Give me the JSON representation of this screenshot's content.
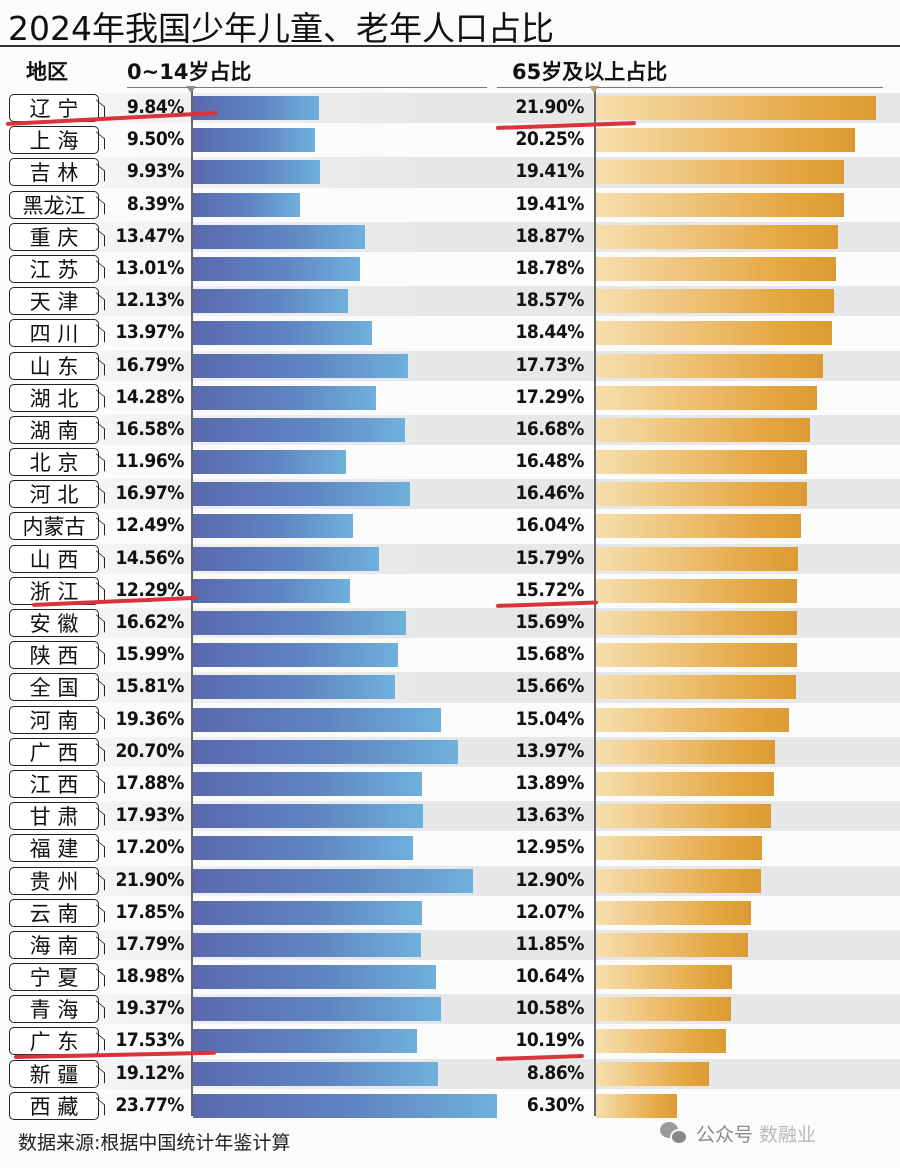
{
  "title": "2024年我国少年儿童、老年人口占比",
  "headers": {
    "region": "地区",
    "young": "0~14岁占比",
    "old": "65岁及以上占比"
  },
  "footer": {
    "source": "数据来源:根据中国统计年鉴计算",
    "watermark_prefix": "公众号",
    "watermark_name": "数融业"
  },
  "colors": {
    "young_bar_start": "#5a69ae",
    "young_bar_end": "#6fb0dc",
    "old_bar_start": "#f5dfae",
    "old_bar_end": "#dc9a34",
    "annotation_red": "#d9343c"
  },
  "chart_data": {
    "type": "bar",
    "orientation": "horizontal",
    "title": "2024年我国少年儿童、老年人口占比",
    "xlabel": "",
    "ylabel": "地区",
    "categories": [
      "辽宁",
      "上海",
      "吉林",
      "黑龙江",
      "重庆",
      "江苏",
      "天津",
      "四川",
      "山东",
      "湖北",
      "湖南",
      "北京",
      "河北",
      "内蒙古",
      "山西",
      "浙江",
      "安徽",
      "陕西",
      "全国",
      "河南",
      "广西",
      "江西",
      "甘肃",
      "福建",
      "贵州",
      "云南",
      "海南",
      "宁夏",
      "青海",
      "广东",
      "新疆",
      "西藏"
    ],
    "series": [
      {
        "name": "0~14岁占比",
        "unit": "%",
        "values": [
          9.84,
          9.5,
          9.93,
          8.39,
          13.47,
          13.01,
          12.13,
          13.97,
          16.79,
          14.28,
          16.58,
          11.96,
          16.97,
          12.49,
          14.56,
          12.29,
          16.62,
          15.99,
          15.81,
          19.36,
          20.7,
          17.88,
          17.93,
          17.2,
          21.9,
          17.85,
          17.79,
          18.98,
          19.37,
          17.53,
          19.12,
          23.77
        ]
      },
      {
        "name": "65岁及以上占比",
        "unit": "%",
        "values": [
          21.9,
          20.25,
          19.41,
          19.41,
          18.87,
          18.78,
          18.57,
          18.44,
          17.73,
          17.29,
          16.68,
          16.48,
          16.46,
          16.04,
          15.79,
          15.72,
          15.69,
          15.68,
          15.66,
          15.04,
          13.97,
          13.89,
          13.63,
          12.95,
          12.9,
          12.07,
          11.85,
          10.64,
          10.58,
          10.19,
          8.86,
          6.3
        ]
      }
    ],
    "sorted_by": "65岁及以上占比 descending",
    "grid": false,
    "legend": "column headers",
    "annotations": [
      "red underlines under 辽宁, 浙江, 广东 rows (both columns)"
    ],
    "source": "数据来源:根据中国统计年鉴计算"
  },
  "rows": [
    {
      "region": "辽 宁",
      "young": "9.84%",
      "old": "21.90%"
    },
    {
      "region": "上 海",
      "young": "9.50%",
      "old": "20.25%"
    },
    {
      "region": "吉 林",
      "young": "9.93%",
      "old": "19.41%"
    },
    {
      "region": "黑龙江",
      "young": "8.39%",
      "old": "19.41%"
    },
    {
      "region": "重 庆",
      "young": "13.47%",
      "old": "18.87%"
    },
    {
      "region": "江 苏",
      "young": "13.01%",
      "old": "18.78%"
    },
    {
      "region": "天 津",
      "young": "12.13%",
      "old": "18.57%"
    },
    {
      "region": "四 川",
      "young": "13.97%",
      "old": "18.44%"
    },
    {
      "region": "山 东",
      "young": "16.79%",
      "old": "17.73%"
    },
    {
      "region": "湖 北",
      "young": "14.28%",
      "old": "17.29%"
    },
    {
      "region": "湖 南",
      "young": "16.58%",
      "old": "16.68%"
    },
    {
      "region": "北 京",
      "young": "11.96%",
      "old": "16.48%"
    },
    {
      "region": "河 北",
      "young": "16.97%",
      "old": "16.46%"
    },
    {
      "region": "内蒙古",
      "young": "12.49%",
      "old": "16.04%"
    },
    {
      "region": "山 西",
      "young": "14.56%",
      "old": "15.79%"
    },
    {
      "region": "浙 江",
      "young": "12.29%",
      "old": "15.72%"
    },
    {
      "region": "安 徽",
      "young": "16.62%",
      "old": "15.69%"
    },
    {
      "region": "陕 西",
      "young": "15.99%",
      "old": "15.68%"
    },
    {
      "region": "全 国",
      "young": "15.81%",
      "old": "15.66%"
    },
    {
      "region": "河 南",
      "young": "19.36%",
      "old": "15.04%"
    },
    {
      "region": "广 西",
      "young": "20.70%",
      "old": "13.97%"
    },
    {
      "region": "江 西",
      "young": "17.88%",
      "old": "13.89%"
    },
    {
      "region": "甘 肃",
      "young": "17.93%",
      "old": "13.63%"
    },
    {
      "region": "福 建",
      "young": "17.20%",
      "old": "12.95%"
    },
    {
      "region": "贵 州",
      "young": "21.90%",
      "old": "12.90%"
    },
    {
      "region": "云 南",
      "young": "17.85%",
      "old": "12.07%"
    },
    {
      "region": "海 南",
      "young": "17.79%",
      "old": "11.85%"
    },
    {
      "region": "宁 夏",
      "young": "18.98%",
      "old": "10.64%"
    },
    {
      "region": "青 海",
      "young": "19.37%",
      "old": "10.58%"
    },
    {
      "region": "广 东",
      "young": "17.53%",
      "old": "10.19%"
    },
    {
      "region": "新 疆",
      "young": "19.12%",
      "old": "8.86%"
    },
    {
      "region": "西 藏",
      "young": "23.77%",
      "old": "6.30%"
    }
  ]
}
